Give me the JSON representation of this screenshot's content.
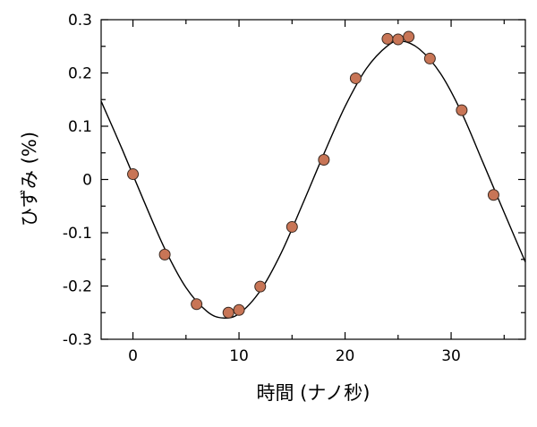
{
  "chart_data": {
    "type": "scatter",
    "title": "",
    "xlabel": "時間 (ナノ秒)",
    "ylabel": "ひずみ (%)",
    "xlim": [
      -3,
      37
    ],
    "ylim": [
      -0.3,
      0.3
    ],
    "xticks": [
      0,
      10,
      20,
      30
    ],
    "xtick_labels": [
      "0",
      "10",
      "20",
      "30"
    ],
    "yticks": [
      -0.3,
      -0.2,
      -0.1,
      0,
      0.1,
      0.2,
      0.3
    ],
    "ytick_labels": [
      "-0.3",
      "-0.2",
      "-0.1",
      "0",
      "0.1",
      "0.2",
      "0.3"
    ],
    "grid": false,
    "legend": "none",
    "marker_color": "#c87556",
    "marker_edge_color": "#3a2a22",
    "line_color": "#000000",
    "series": [
      {
        "type": "scatter",
        "x": [
          0,
          3,
          6,
          9,
          10,
          12,
          15,
          18,
          21,
          24,
          25,
          26,
          28,
          31,
          34
        ],
        "y": [
          0.01,
          -0.141,
          -0.234,
          -0.25,
          -0.245,
          -0.201,
          -0.089,
          0.037,
          0.19,
          0.264,
          0.263,
          0.268,
          0.227,
          0.13,
          -0.029
        ]
      },
      {
        "type": "line",
        "x": [
          -3,
          -1,
          1,
          3,
          5,
          7,
          8.5,
          10,
          12,
          14,
          16,
          18,
          20,
          22,
          24,
          25.3,
          27,
          29,
          31,
          33,
          35,
          37
        ],
        "y": [
          0.147,
          0.056,
          -0.039,
          -0.13,
          -0.203,
          -0.248,
          -0.26,
          -0.252,
          -0.209,
          -0.137,
          -0.046,
          0.048,
          0.137,
          0.208,
          0.251,
          0.26,
          0.245,
          0.199,
          0.125,
          0.032,
          -0.062,
          -0.155
        ]
      }
    ]
  }
}
